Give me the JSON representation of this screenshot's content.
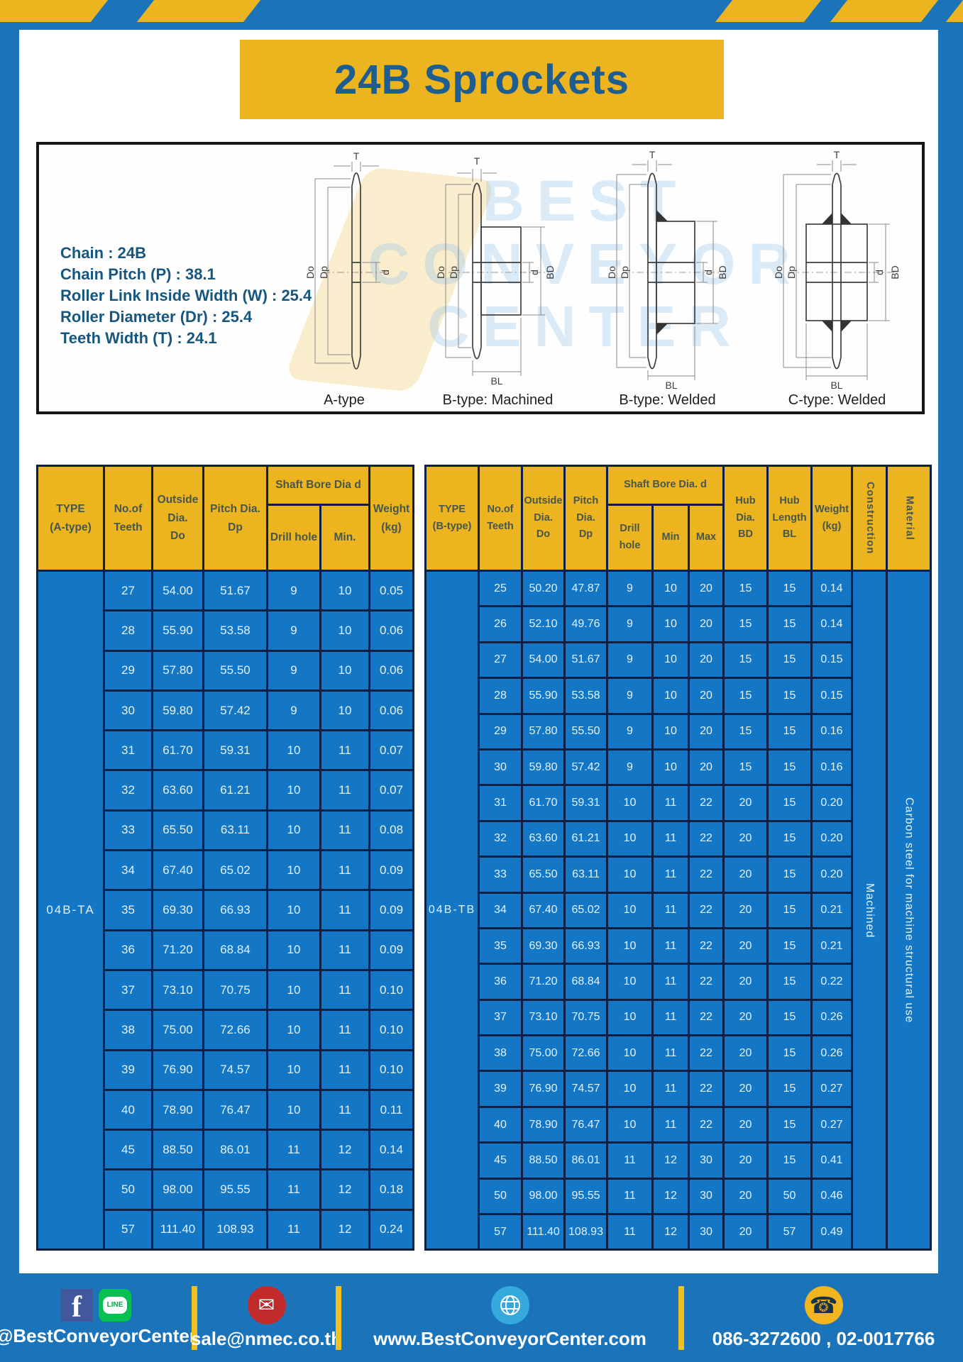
{
  "page": {
    "title": "24B Sprockets",
    "watermark": "BEST\nCONVEYOR\nCENTER"
  },
  "colors": {
    "frame_blue": "#1b74ba",
    "stripe_yellow": "#ecb41f",
    "header_yellow": "#ecb41f",
    "cell_blue": "#1377c5",
    "border_navy": "#0d1f43",
    "title_blue": "#1e5d90",
    "header_text": "#47564f"
  },
  "specs": {
    "lines": [
      "Chain  : 24B",
      "Chain Pitch (P)  :  38.1",
      "Roller Link Inside Width (W)  :  25.4",
      "Roller Diameter (Dr)  : 25.4",
      "Teeth Width (T)  :  24.1"
    ]
  },
  "diagram": {
    "captions": [
      "A-type",
      "B-type: Machined",
      "B-type: Welded",
      "C-type: Welded"
    ],
    "dims": {
      "t": "T",
      "do": "Do",
      "dp": "Dp",
      "d": "d",
      "bd": "BD",
      "bl": "BL"
    }
  },
  "table_a": {
    "type_label": "04B-TA",
    "headers": {
      "type": "TYPE\n(A-type)",
      "teeth": "No.of\nTeeth",
      "outside": "Outside\nDia.\nDo",
      "pitch": "Pitch Dia.\nDp",
      "shaft": "Shaft Bore Dia d",
      "drill": "Drill hole",
      "min": "Min.",
      "weight": "Weight\n(kg)"
    },
    "rows": [
      [
        "27",
        "54.00",
        "51.67",
        "9",
        "10",
        "0.05"
      ],
      [
        "28",
        "55.90",
        "53.58",
        "9",
        "10",
        "0.06"
      ],
      [
        "29",
        "57.80",
        "55.50",
        "9",
        "10",
        "0.06"
      ],
      [
        "30",
        "59.80",
        "57.42",
        "9",
        "10",
        "0.06"
      ],
      [
        "31",
        "61.70",
        "59.31",
        "10",
        "11",
        "0.07"
      ],
      [
        "32",
        "63.60",
        "61.21",
        "10",
        "11",
        "0.07"
      ],
      [
        "33",
        "65.50",
        "63.11",
        "10",
        "11",
        "0.08"
      ],
      [
        "34",
        "67.40",
        "65.02",
        "10",
        "11",
        "0.09"
      ],
      [
        "35",
        "69.30",
        "66.93",
        "10",
        "11",
        "0.09"
      ],
      [
        "36",
        "71.20",
        "68.84",
        "10",
        "11",
        "0.09"
      ],
      [
        "37",
        "73.10",
        "70.75",
        "10",
        "11",
        "0.10"
      ],
      [
        "38",
        "75.00",
        "72.66",
        "10",
        "11",
        "0.10"
      ],
      [
        "39",
        "76.90",
        "74.57",
        "10",
        "11",
        "0.10"
      ],
      [
        "40",
        "78.90",
        "76.47",
        "10",
        "11",
        "0.11"
      ],
      [
        "45",
        "88.50",
        "86.01",
        "11",
        "12",
        "0.14"
      ],
      [
        "50",
        "98.00",
        "95.55",
        "11",
        "12",
        "0.18"
      ],
      [
        "57",
        "111.40",
        "108.93",
        "11",
        "12",
        "0.24"
      ]
    ]
  },
  "table_b": {
    "type_label": "04B-TB",
    "headers": {
      "type": "TYPE\n(B-type)",
      "teeth": "No.of\nTeeth",
      "outside": "Outside\nDia.\nDo",
      "pitch": "Pitch\nDia.\nDp",
      "shaft": "Shaft Bore Dia. d",
      "drill": "Drill hole",
      "min": "Min",
      "max": "Max",
      "hub_dia": "Hub\nDia.\nBD",
      "hub_len": "Hub\nLength\nBL",
      "weight": "Weight\n(kg)",
      "construction": "Construction",
      "material": "Material"
    },
    "construction_value": "Machined",
    "material_value": "Carbon steel for machine structural use",
    "rows": [
      [
        "25",
        "50.20",
        "47.87",
        "9",
        "10",
        "20",
        "15",
        "15",
        "0.14"
      ],
      [
        "26",
        "52.10",
        "49.76",
        "9",
        "10",
        "20",
        "15",
        "15",
        "0.14"
      ],
      [
        "27",
        "54.00",
        "51.67",
        "9",
        "10",
        "20",
        "15",
        "15",
        "0.15"
      ],
      [
        "28",
        "55.90",
        "53.58",
        "9",
        "10",
        "20",
        "15",
        "15",
        "0.15"
      ],
      [
        "29",
        "57.80",
        "55.50",
        "9",
        "10",
        "20",
        "15",
        "15",
        "0.16"
      ],
      [
        "30",
        "59.80",
        "57.42",
        "9",
        "10",
        "20",
        "15",
        "15",
        "0.16"
      ],
      [
        "31",
        "61.70",
        "59.31",
        "10",
        "11",
        "22",
        "20",
        "15",
        "0.20"
      ],
      [
        "32",
        "63.60",
        "61.21",
        "10",
        "11",
        "22",
        "20",
        "15",
        "0.20"
      ],
      [
        "33",
        "65.50",
        "63.11",
        "10",
        "11",
        "22",
        "20",
        "15",
        "0.20"
      ],
      [
        "34",
        "67.40",
        "65.02",
        "10",
        "11",
        "22",
        "20",
        "15",
        "0.21"
      ],
      [
        "35",
        "69.30",
        "66.93",
        "10",
        "11",
        "22",
        "20",
        "15",
        "0.21"
      ],
      [
        "36",
        "71.20",
        "68.84",
        "10",
        "11",
        "22",
        "20",
        "15",
        "0.22"
      ],
      [
        "37",
        "73.10",
        "70.75",
        "10",
        "11",
        "22",
        "20",
        "15",
        "0.26"
      ],
      [
        "38",
        "75.00",
        "72.66",
        "10",
        "11",
        "22",
        "20",
        "15",
        "0.26"
      ],
      [
        "39",
        "76.90",
        "74.57",
        "10",
        "11",
        "22",
        "20",
        "15",
        "0.27"
      ],
      [
        "40",
        "78.90",
        "76.47",
        "10",
        "11",
        "22",
        "20",
        "15",
        "0.27"
      ],
      [
        "45",
        "88.50",
        "86.01",
        "11",
        "12",
        "30",
        "20",
        "15",
        "0.41"
      ],
      [
        "50",
        "98.00",
        "95.55",
        "11",
        "12",
        "30",
        "20",
        "50",
        "0.46"
      ],
      [
        "57",
        "111.40",
        "108.93",
        "11",
        "12",
        "30",
        "20",
        "57",
        "0.49"
      ]
    ]
  },
  "footer": {
    "social_handle": "@BestConveyorCenter",
    "email": "sale@nmec.co.th",
    "website": "www.BestConveyorCenter.com",
    "phone": "086-3272600 , 02-0017766",
    "facebook_letter": "f",
    "line_text": "LINE"
  }
}
